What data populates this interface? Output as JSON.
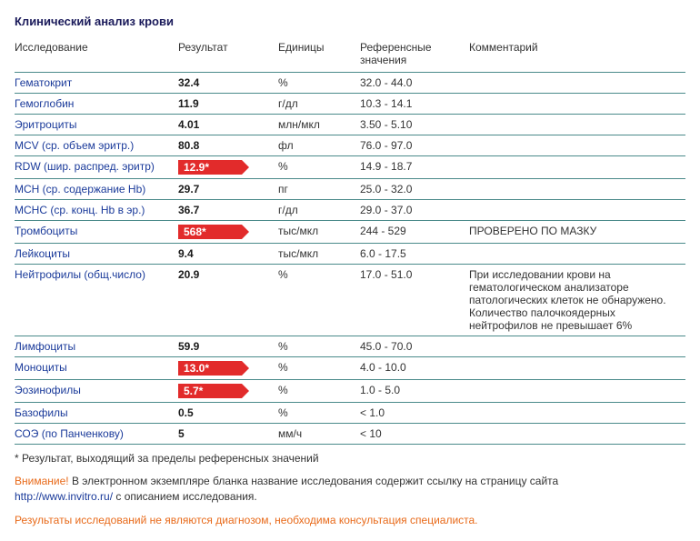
{
  "title": "Клинический анализ крови",
  "columns": {
    "name": "Исследование",
    "result": "Результат",
    "unit": "Единицы",
    "ref": "Референсные значения",
    "comment": "Комментарий"
  },
  "rows": [
    {
      "name": "Гематокрит",
      "result": "32.4",
      "flag": false,
      "unit": "%",
      "ref": "32.0 - 44.0",
      "comment": ""
    },
    {
      "name": "Гемоглобин",
      "result": "11.9",
      "flag": false,
      "unit": "г/дл",
      "ref": "10.3 - 14.1",
      "comment": ""
    },
    {
      "name": "Эритроциты",
      "result": "4.01",
      "flag": false,
      "unit": "млн/мкл",
      "ref": "3.50 - 5.10",
      "comment": ""
    },
    {
      "name": "MCV (ср. объем эритр.)",
      "result": "80.8",
      "flag": false,
      "unit": "фл",
      "ref": "76.0 - 97.0",
      "comment": ""
    },
    {
      "name": "RDW (шир. распред. эритр)",
      "result": "12.9*",
      "flag": true,
      "unit": "%",
      "ref": "14.9 - 18.7",
      "comment": ""
    },
    {
      "name": "MCH (ср. содержание Hb)",
      "result": "29.7",
      "flag": false,
      "unit": "пг",
      "ref": "25.0 - 32.0",
      "comment": ""
    },
    {
      "name": "MCHC (ср. конц. Hb в эр.)",
      "result": "36.7",
      "flag": false,
      "unit": "г/дл",
      "ref": "29.0 - 37.0",
      "comment": ""
    },
    {
      "name": "Тромбоциты",
      "result": "568*",
      "flag": true,
      "unit": "тыс/мкл",
      "ref": "244 - 529",
      "comment": "ПРОВЕРЕНО ПО МАЗКУ"
    },
    {
      "name": "Лейкоциты",
      "result": "9.4",
      "flag": false,
      "unit": "тыс/мкл",
      "ref": "6.0 - 17.5",
      "comment": ""
    },
    {
      "name": "Нейтрофилы (общ.число)",
      "result": "20.9",
      "flag": false,
      "unit": "%",
      "ref": "17.0 - 51.0",
      "comment": "При исследовании крови на гематологическом анализаторе патологических клеток не обнаружено. Количество палочкоядерных нейтрофилов не превышает 6%"
    },
    {
      "name": "Лимфоциты",
      "result": "59.9",
      "flag": false,
      "unit": "%",
      "ref": "45.0 - 70.0",
      "comment": ""
    },
    {
      "name": "Моноциты",
      "result": "13.0*",
      "flag": true,
      "unit": "%",
      "ref": "4.0 - 10.0",
      "comment": ""
    },
    {
      "name": "Эозинофилы",
      "result": "5.7*",
      "flag": true,
      "unit": "%",
      "ref": "1.0 - 5.0",
      "comment": ""
    },
    {
      "name": "Базофилы",
      "result": "0.5",
      "flag": false,
      "unit": "%",
      "ref": "< 1.0",
      "comment": ""
    },
    {
      "name": "СОЭ (по Панченкову)",
      "result": "5",
      "flag": false,
      "unit": "мм/ч",
      "ref": "< 10",
      "comment": ""
    }
  ],
  "footnote": "* Результат, выходящий за пределы референсных значений",
  "attention": {
    "label": "Внимание!",
    "text1": "В электронном экземпляре бланка название исследования содержит ссылку на страницу сайта",
    "link": "http://www.invitro.ru/",
    "text2": "с описанием исследования."
  },
  "disclaimer": "Результаты исследований не являются диагнозом, необходима консультация специалиста.",
  "colors": {
    "flag_bg": "#e22b2b",
    "link": "#1a3a9a",
    "border": "#4a8a8a",
    "attn": "#e86a1a"
  }
}
